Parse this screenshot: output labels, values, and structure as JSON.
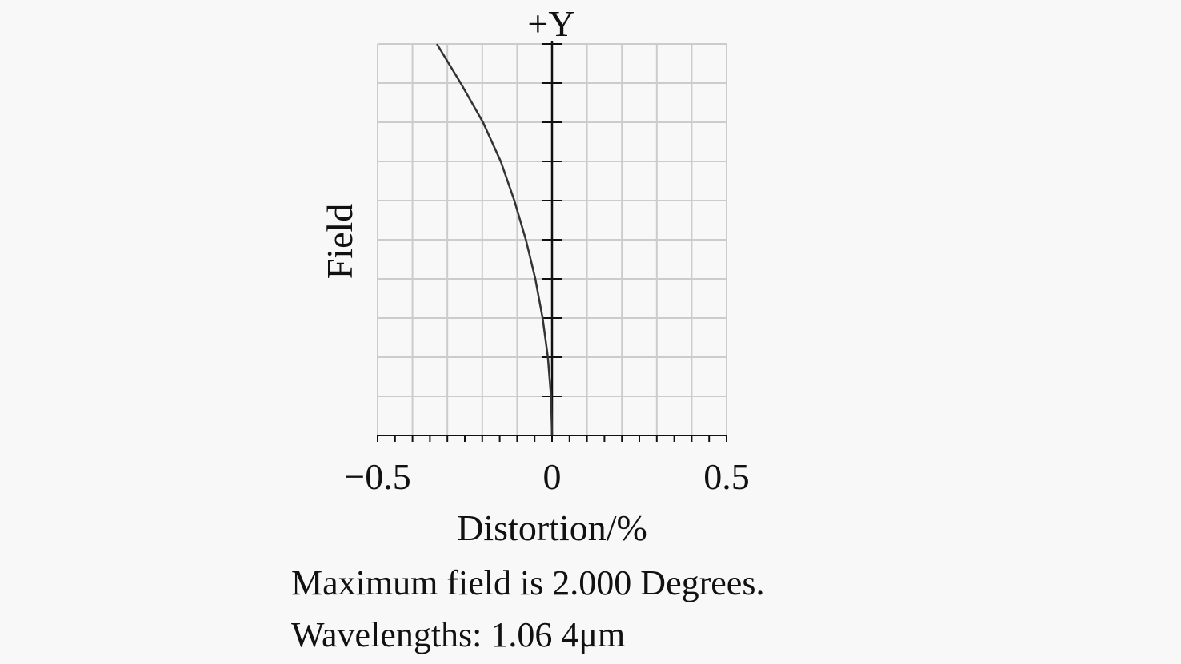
{
  "chart_data": {
    "type": "line",
    "axis_top_label": "+Y",
    "ylabel": "Field",
    "xlabel": "Distortion/%",
    "x_tick_labels": [
      "−0.5",
      "0",
      "0.5"
    ],
    "x_ticks": [
      -0.5,
      0,
      0.5
    ],
    "xlim": [
      -0.5,
      0.5
    ],
    "ylim": [
      0,
      1
    ],
    "y_major_divisions": 10,
    "x_grid_divisions": 10,
    "x_minor_divisions": 20,
    "grid": true,
    "series": [
      {
        "color": "#333333",
        "points": [
          [
            0.0,
            0.0
          ],
          [
            -0.003,
            0.1
          ],
          [
            -0.012,
            0.2
          ],
          [
            -0.027,
            0.3
          ],
          [
            -0.048,
            0.4
          ],
          [
            -0.075,
            0.5
          ],
          [
            -0.108,
            0.6
          ],
          [
            -0.147,
            0.7
          ],
          [
            -0.198,
            0.8
          ],
          [
            -0.262,
            0.9
          ],
          [
            -0.33,
            1.0
          ]
        ]
      }
    ]
  },
  "notes": {
    "max_field": "Maximum field is 2.000 Degrees.",
    "wavelengths": "Wavelengths: 1.06 4μm"
  },
  "colors": {
    "background": "#f8f8f8",
    "grid": "#cccccc",
    "axis": "#111111",
    "curve": "#333333"
  }
}
